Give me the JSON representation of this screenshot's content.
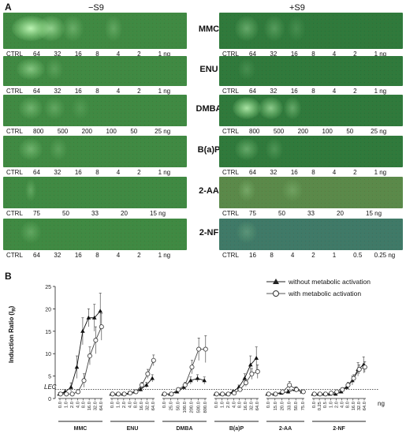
{
  "panel_a": {
    "letter": "A",
    "col_minus": "−S9",
    "col_plus": "+S9",
    "rows": [
      {
        "name": "MMC",
        "minus": [
          "CTRL",
          "64",
          "32",
          "16",
          "8",
          "4",
          "2",
          "1 ng"
        ],
        "plus": [
          "CTRL",
          "64",
          "32",
          "16",
          "8",
          "4",
          "2",
          "1 ng"
        ]
      },
      {
        "name": "ENU",
        "minus": [
          "CTRL",
          "64",
          "32",
          "16",
          "8",
          "4",
          "2",
          "1 ng"
        ],
        "plus": [
          "CTRL",
          "64",
          "32",
          "16",
          "8",
          "4",
          "2",
          "1 ng"
        ]
      },
      {
        "name": "DMBA",
        "minus": [
          "CTRL",
          "800",
          "500",
          "200",
          "100",
          "50",
          "25 ng"
        ],
        "plus": [
          "CTRL",
          "800",
          "500",
          "200",
          "100",
          "50",
          "25 ng"
        ]
      },
      {
        "name": "B(a)P",
        "minus": [
          "CTRL",
          "64",
          "32",
          "16",
          "8",
          "4",
          "2",
          "1 ng"
        ],
        "plus": [
          "CTRL",
          "64",
          "32",
          "16",
          "8",
          "4",
          "2",
          "1 ng"
        ]
      },
      {
        "name": "2-AA",
        "minus": [
          "CTRL",
          "75",
          "50",
          "33",
          "20",
          "15 ng"
        ],
        "plus": [
          "CTRL",
          "75",
          "50",
          "33",
          "20",
          "15 ng"
        ]
      },
      {
        "name": "2-NF",
        "minus": [
          "CTRL",
          "64",
          "32",
          "16",
          "8",
          "4",
          "2",
          "1 ng"
        ],
        "plus": [
          "CTRL",
          "16",
          "8",
          "4",
          "2",
          "1",
          "0.5",
          "0.25 ng"
        ]
      }
    ]
  },
  "panel_b": {
    "letter": "B",
    "ylabel": "Induction Ratio (I",
    "ylabel_sub": "R",
    "ylabel_end": ")",
    "lec_label": "LEC",
    "x_unit": "ng",
    "legend": [
      "without metabolic activation",
      "with metabolic activation"
    ]
  },
  "chart_data": {
    "type": "line",
    "ylim": [
      0,
      25
    ],
    "yticks": [
      0,
      5,
      10,
      15,
      20,
      25
    ],
    "lec": 2,
    "groups": [
      {
        "name": "MMC",
        "doses": [
          "0.0",
          "1.0",
          "2.0",
          "4.0",
          "8.0",
          "16.0",
          "32.0",
          "64.0"
        ],
        "without": [
          1,
          1.5,
          2.5,
          7,
          15,
          18,
          18,
          19.5
        ],
        "without_err": [
          0.3,
          0.5,
          1,
          2.5,
          3,
          2,
          3,
          4
        ],
        "with": [
          1,
          1,
          1,
          1.5,
          4,
          9.5,
          13,
          16
        ],
        "with_err": [
          0.2,
          0.2,
          0.2,
          0.5,
          1.5,
          2,
          3,
          3
        ]
      },
      {
        "name": "ENU",
        "doses": [
          "0.0",
          "1.0",
          "2.0",
          "4.0",
          "8.0",
          "16.0",
          "32.0",
          "64.0"
        ],
        "without": [
          1,
          1,
          1,
          1.2,
          1.5,
          2,
          3,
          4.5
        ],
        "without_err": [
          0.2,
          0.2,
          0.2,
          0.3,
          0.3,
          0.4,
          0.6,
          0.8
        ],
        "with": [
          1,
          1,
          1,
          1.2,
          1.5,
          3,
          5.5,
          8.5
        ],
        "with_err": [
          0.2,
          0.2,
          0.2,
          0.3,
          0.4,
          0.6,
          1,
          1.2
        ]
      },
      {
        "name": "DMBA",
        "doses": [
          "0.0",
          "25.0",
          "50.0",
          "100.0",
          "200.0",
          "500.0",
          "800.0"
        ],
        "without": [
          1,
          1,
          1.5,
          2.5,
          4,
          4.5,
          4
        ],
        "without_err": [
          0.2,
          0.2,
          0.3,
          0.5,
          0.8,
          0.8,
          0.8
        ],
        "with": [
          1,
          1,
          2,
          3,
          7,
          11,
          11
        ],
        "with_err": [
          0.2,
          0.2,
          0.3,
          0.6,
          1.5,
          2.5,
          3
        ]
      },
      {
        "name": "B(a)P",
        "doses": [
          "0.0",
          "1.0",
          "2.0",
          "4.0",
          "8.0",
          "16.0",
          "32.0",
          "64.0"
        ],
        "without": [
          1,
          1,
          1,
          1.5,
          2.5,
          4.5,
          7.5,
          9
        ],
        "without_err": [
          0.2,
          0.2,
          0.2,
          0.3,
          0.5,
          1,
          2,
          2.5
        ],
        "with": [
          1,
          1,
          1,
          1.2,
          2,
          3.5,
          5.5,
          6
        ],
        "with_err": [
          0.2,
          0.2,
          0.2,
          0.3,
          0.4,
          0.8,
          1.2,
          1.5
        ]
      },
      {
        "name": "2-AA",
        "doses": [
          "0.0",
          "15.0",
          "20.0",
          "33.0",
          "50.0",
          "75.0"
        ],
        "without": [
          1,
          1,
          1.2,
          1.5,
          2,
          1.5
        ],
        "without_err": [
          0.2,
          0.2,
          0.3,
          0.4,
          0.5,
          0.3
        ],
        "with": [
          1,
          1,
          1.5,
          3,
          2,
          1.5
        ],
        "with_err": [
          0.2,
          0.2,
          0.3,
          0.8,
          0.6,
          0.3
        ]
      },
      {
        "name": "2-NF",
        "doses": [
          "0.0",
          "0.25",
          "0.5",
          "1.0",
          "2.0",
          "4.0",
          "8.0",
          "16.0",
          "32.0",
          "64.0"
        ],
        "without": [
          1,
          1,
          1,
          1,
          1,
          1.5,
          2.5,
          4,
          6.5,
          7.5
        ],
        "without_err": [
          0.2,
          0.2,
          0.2,
          0.2,
          0.2,
          0.3,
          0.5,
          1,
          1.5,
          1.8
        ],
        "with": [
          1,
          1,
          1,
          1.2,
          1.5,
          2,
          3,
          4.5,
          6.5,
          7
        ],
        "with_err": [
          0.2,
          0.2,
          0.2,
          0.2,
          0.3,
          0.4,
          0.6,
          0.8,
          1,
          1.2
        ]
      }
    ]
  },
  "colors": {
    "gel_green": "#3d8a3f",
    "gel_dark": "#2f6e35",
    "spot": "#b8f0b0"
  }
}
